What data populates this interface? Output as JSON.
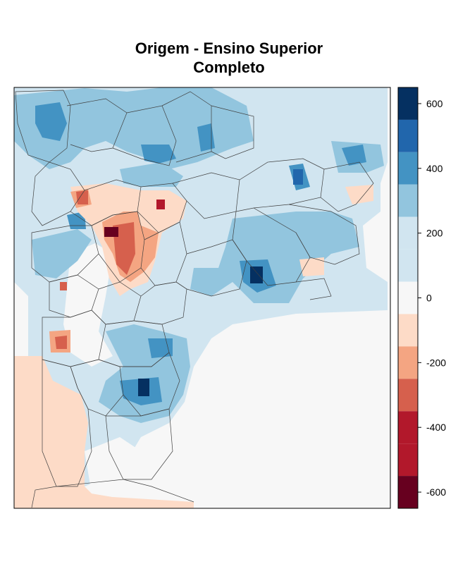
{
  "chart_data": {
    "type": "heatmap",
    "title_lines": [
      "Origem - Ensino Superior",
      "Completo"
    ],
    "colorbar": {
      "ticks": [
        600,
        400,
        200,
        0,
        -200,
        -400,
        -600
      ],
      "tick_labels": [
        "600",
        "400",
        "200",
        "0",
        "-200",
        "-400",
        "-600"
      ],
      "range": [
        -650,
        650
      ],
      "bins": [
        {
          "from": 550,
          "to": 650,
          "color": "#053061"
        },
        {
          "from": 450,
          "to": 550,
          "color": "#2166ac"
        },
        {
          "from": 350,
          "to": 450,
          "color": "#4393c3"
        },
        {
          "from": 250,
          "to": 350,
          "color": "#92c5de"
        },
        {
          "from": 150,
          "to": 250,
          "color": "#d1e5f0"
        },
        {
          "from": 50,
          "to": 150,
          "color": "#d1e5f0"
        },
        {
          "from": -50,
          "to": 50,
          "color": "#f7f7f7"
        },
        {
          "from": -150,
          "to": -50,
          "color": "#fddbc7"
        },
        {
          "from": -250,
          "to": -150,
          "color": "#f4a582"
        },
        {
          "from": -350,
          "to": -250,
          "color": "#d6604d"
        },
        {
          "from": -450,
          "to": -350,
          "color": "#b2182b"
        },
        {
          "from": -550,
          "to": -450,
          "color": "#b2182b"
        },
        {
          "from": -650,
          "to": -550,
          "color": "#67001f"
        }
      ]
    },
    "notable_values": [
      {
        "label": "peak positive (east)",
        "value": 620
      },
      {
        "label": "peak positive (south)",
        "value": 640
      },
      {
        "label": "peak negative (center)",
        "value": -650
      }
    ]
  }
}
